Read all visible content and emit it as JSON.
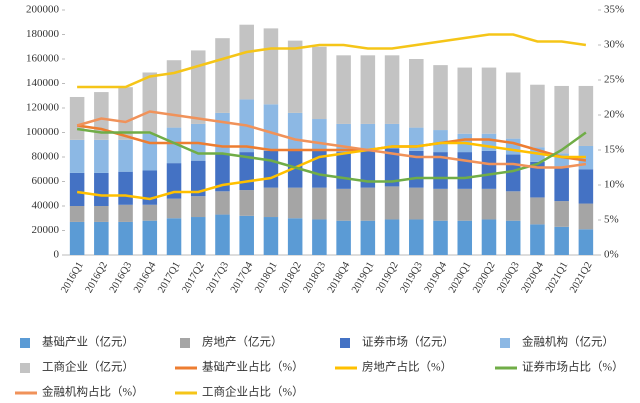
{
  "chart_data": {
    "type": "bar",
    "stacked": true,
    "grid": false,
    "categories": [
      "2016Q1",
      "2016Q2",
      "2016Q3",
      "2016Q4",
      "2017Q1",
      "2017Q2",
      "2017Q3",
      "2017Q4",
      "2018Q1",
      "2018Q2",
      "2018Q3",
      "2018Q4",
      "2019Q1",
      "2019Q2",
      "2019Q3",
      "2019Q4",
      "2020Q1",
      "2020Q2",
      "2020Q3",
      "2020Q4",
      "2021Q1",
      "2021Q2"
    ],
    "ylim": [
      0,
      200000
    ],
    "yticks": [
      0,
      20000,
      40000,
      60000,
      80000,
      100000,
      120000,
      140000,
      160000,
      180000,
      200000
    ],
    "y2lim": [
      0,
      35
    ],
    "y2ticks": [
      {
        "value": 0,
        "label": "0%"
      },
      {
        "value": 5,
        "label": "5%"
      },
      {
        "value": 10,
        "label": "10%"
      },
      {
        "value": 15,
        "label": "15%"
      },
      {
        "value": 20,
        "label": "20%"
      },
      {
        "value": 25,
        "label": "25%"
      },
      {
        "value": 30,
        "label": "30%"
      },
      {
        "value": 35,
        "label": "35%"
      }
    ],
    "series": [
      {
        "name": "基础产业（亿元）",
        "color": "#5b9bd5",
        "values": [
          27000,
          27000,
          27000,
          28000,
          30000,
          31000,
          33000,
          32000,
          31000,
          30000,
          29000,
          28000,
          28000,
          29000,
          29000,
          28000,
          28000,
          29000,
          28000,
          25000,
          23000,
          21000
        ]
      },
      {
        "name": "房地产（亿元）",
        "color": "#a5a5a5",
        "values": [
          13000,
          13000,
          14000,
          13000,
          16000,
          17000,
          19000,
          21000,
          24000,
          25000,
          26000,
          26000,
          27000,
          27000,
          26000,
          26000,
          26000,
          25000,
          24000,
          22000,
          21000,
          21000
        ]
      },
      {
        "name": "证券市场（亿元）",
        "color": "#4472c4",
        "values": [
          27000,
          27000,
          27000,
          28000,
          29000,
          29000,
          31000,
          31000,
          30000,
          30000,
          30000,
          30000,
          30000,
          31000,
          30000,
          30000,
          30000,
          31000,
          30000,
          29000,
          27000,
          28000
        ]
      },
      {
        "name": "金融机构（亿元）",
        "color": "#8cb8e4",
        "values": [
          27000,
          27000,
          26000,
          30000,
          29000,
          30000,
          33000,
          43000,
          38000,
          31000,
          26000,
          23000,
          22000,
          20000,
          19000,
          18000,
          15000,
          14000,
          13000,
          12000,
          12000,
          19000
        ]
      },
      {
        "name": "工商企业（亿元）",
        "color": "#c3c3c3",
        "values": [
          35000,
          39000,
          43000,
          50000,
          55000,
          60000,
          61000,
          61000,
          62000,
          59000,
          59000,
          56000,
          56000,
          56000,
          56000,
          53000,
          54000,
          54000,
          54000,
          51000,
          55000,
          49000
        ]
      },
      {
        "name": "基础产业占比（%）",
        "color": "#ed7d31",
        "type": "line",
        "axis": "y2",
        "values": [
          18.5,
          18,
          17,
          16,
          16,
          16,
          15.5,
          15.5,
          15,
          15,
          15,
          15,
          15,
          15.5,
          15.5,
          16,
          16.5,
          16.5,
          16,
          15,
          14,
          13.5
        ]
      },
      {
        "name": "房地产占比（%）",
        "color": "#ffc000",
        "type": "line",
        "axis": "y2",
        "values": [
          9,
          8.5,
          8.5,
          8,
          9,
          9,
          10,
          10.5,
          11,
          12.5,
          14,
          14.5,
          15,
          15.5,
          15.5,
          16,
          16,
          15.5,
          15,
          14.5,
          14,
          14
        ]
      },
      {
        "name": "证券市场占比（%）",
        "color": "#70ad47",
        "type": "line",
        "axis": "y2",
        "values": [
          18,
          17.5,
          17.5,
          17.5,
          16,
          14.5,
          14.5,
          14,
          13.5,
          12.5,
          11.5,
          11,
          10.5,
          10.5,
          11,
          11,
          11,
          11.5,
          12,
          13,
          15,
          17.5
        ]
      },
      {
        "name": "金融机构占比（%）",
        "color": "#f0925a",
        "type": "line",
        "axis": "y2",
        "values": [
          18.5,
          19.5,
          19,
          20.5,
          20,
          19.5,
          19,
          18.5,
          17.5,
          16.5,
          16,
          15.5,
          15,
          14.5,
          14,
          14,
          13.5,
          13,
          13,
          12.5,
          12.5,
          13
        ]
      },
      {
        "name": "工商企业占比（%）",
        "color": "#f5c518",
        "type": "line",
        "axis": "y2",
        "values": [
          24,
          24,
          24,
          25.5,
          26,
          27,
          28,
          29,
          29.5,
          29.5,
          30,
          30,
          29.5,
          29.5,
          30,
          30.5,
          31,
          31.5,
          31.5,
          30.5,
          30.5,
          30
        ]
      }
    ]
  }
}
